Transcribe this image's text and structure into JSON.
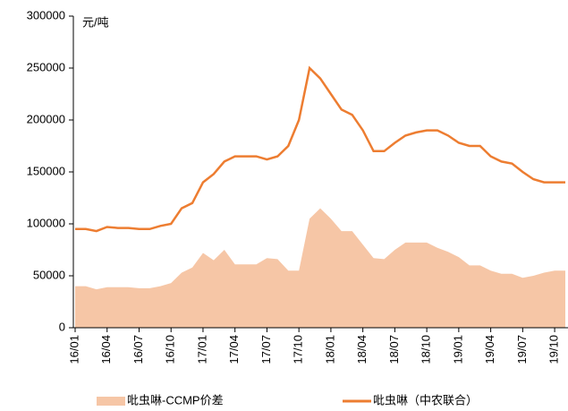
{
  "chart_data": {
    "type": "line",
    "y_label": "元/吨",
    "categories": [
      "16/01",
      null,
      null,
      "16/04",
      null,
      null,
      "16/07",
      null,
      null,
      "16/10",
      null,
      null,
      "17/01",
      null,
      null,
      "17/04",
      null,
      null,
      "17/07",
      null,
      null,
      "17/10",
      null,
      null,
      "18/01",
      null,
      null,
      "18/04",
      null,
      null,
      "18/07",
      null,
      null,
      "18/10",
      null,
      null,
      "19/01",
      null,
      null,
      "19/04",
      null,
      null,
      "19/07",
      null,
      null,
      "19/10",
      null
    ],
    "series": [
      {
        "name": "吡虫啉-CCMP价差",
        "type": "area",
        "color": "#f6c6a6",
        "values": [
          40000,
          40000,
          37000,
          39000,
          39000,
          39000,
          38000,
          38000,
          40000,
          43000,
          53000,
          58000,
          72000,
          65000,
          75000,
          61000,
          61000,
          61000,
          67000,
          66000,
          55000,
          55000,
          105000,
          115000,
          105000,
          93000,
          93000,
          80000,
          67000,
          66000,
          75000,
          82000,
          82000,
          82000,
          77000,
          73000,
          68000,
          60000,
          60000,
          55000,
          52000,
          52000,
          48000,
          50000,
          53000,
          55000,
          55000
        ]
      },
      {
        "name": "吡虫啉（中农联合）",
        "type": "line",
        "color": "#ed7d31",
        "values": [
          95000,
          95000,
          93000,
          97000,
          96000,
          96000,
          95000,
          95000,
          98000,
          100000,
          115000,
          120000,
          140000,
          148000,
          160000,
          165000,
          165000,
          165000,
          162000,
          165000,
          175000,
          200000,
          250000,
          240000,
          225000,
          210000,
          205000,
          190000,
          170000,
          170000,
          178000,
          185000,
          188000,
          190000,
          190000,
          185000,
          178000,
          175000,
          175000,
          165000,
          160000,
          158000,
          150000,
          143000,
          140000,
          140000,
          140000
        ]
      }
    ],
    "ylim": [
      0,
      300000
    ],
    "yticks": [
      0,
      50000,
      100000,
      150000,
      200000,
      250000,
      300000
    ],
    "grid": false,
    "legend": "bottom"
  }
}
